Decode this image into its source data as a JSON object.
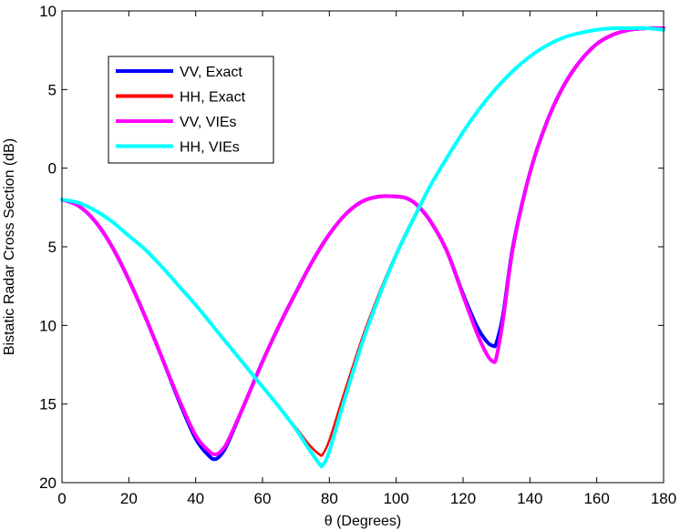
{
  "chart_data": {
    "type": "line",
    "title": "",
    "xlabel": "θ (Degrees)",
    "ylabel": "Bistatic Radar Cross Section (dB)",
    "xlim": [
      0,
      180
    ],
    "ylim": [
      -20,
      10
    ],
    "x_ticks": [
      0,
      20,
      40,
      60,
      80,
      100,
      120,
      140,
      160,
      180
    ],
    "y_ticks": [
      -20,
      -15,
      -10,
      -5,
      0,
      5,
      10
    ],
    "x_tick_labels": [
      "0",
      "20",
      "40",
      "60",
      "80",
      "100",
      "120",
      "140",
      "160",
      "180"
    ],
    "y_tick_labels": [
      "20",
      "15",
      "10",
      "5",
      "0",
      "5",
      "10"
    ],
    "grid": false,
    "legend_position": "top-left",
    "series": [
      {
        "name": "VV, Exact",
        "color": "#0000ff",
        "x": [
          0,
          5,
          10,
          15,
          20,
          25,
          30,
          35,
          40,
          44,
          46,
          48,
          50,
          55,
          60,
          65,
          70,
          75,
          80,
          85,
          90,
          95,
          100,
          103,
          106,
          110,
          115,
          120,
          124,
          127,
          129,
          130,
          132,
          135,
          140,
          145,
          150,
          155,
          160,
          165,
          170,
          175,
          180
        ],
        "y": [
          -2.0,
          -2.4,
          -3.4,
          -5.0,
          -7.1,
          -9.5,
          -12.1,
          -14.8,
          -17.2,
          -18.3,
          -18.5,
          -18.1,
          -17.3,
          -14.8,
          -12.3,
          -10.0,
          -7.9,
          -5.9,
          -4.2,
          -2.9,
          -2.1,
          -1.8,
          -1.8,
          -1.9,
          -2.3,
          -3.3,
          -5.2,
          -8.0,
          -10.0,
          -11.0,
          -11.3,
          -11.1,
          -9.3,
          -4.9,
          -0.3,
          2.9,
          5.2,
          6.8,
          7.9,
          8.5,
          8.8,
          8.9,
          8.9
        ]
      },
      {
        "name": "HH, Exact",
        "color": "#ff0000",
        "x": [
          0,
          5,
          10,
          15,
          20,
          25,
          30,
          35,
          40,
          45,
          50,
          55,
          60,
          65,
          70,
          74,
          77,
          78,
          80,
          84,
          90,
          95,
          100,
          105,
          110,
          115,
          120,
          125,
          130,
          135,
          140,
          145,
          150,
          155,
          160,
          165,
          170,
          175,
          180
        ],
        "y": [
          -2.0,
          -2.2,
          -2.7,
          -3.4,
          -4.3,
          -5.2,
          -6.3,
          -7.5,
          -8.7,
          -10.0,
          -11.3,
          -12.6,
          -13.9,
          -15.2,
          -16.5,
          -17.6,
          -18.2,
          -18.2,
          -17.3,
          -14.6,
          -10.7,
          -7.9,
          -5.4,
          -3.2,
          -1.2,
          0.6,
          2.3,
          3.8,
          5.1,
          6.2,
          7.1,
          7.8,
          8.3,
          8.6,
          8.8,
          8.9,
          8.9,
          8.9,
          8.8
        ]
      },
      {
        "name": "VV, VIEs",
        "color": "#ff00ff",
        "x": [
          0,
          5,
          10,
          15,
          20,
          25,
          30,
          35,
          40,
          44,
          46,
          48,
          50,
          55,
          60,
          65,
          70,
          75,
          80,
          85,
          90,
          95,
          100,
          103,
          106,
          110,
          115,
          120,
          124,
          127,
          129,
          130,
          132,
          135,
          140,
          145,
          150,
          155,
          160,
          165,
          170,
          175,
          180
        ],
        "y": [
          -2.0,
          -2.4,
          -3.4,
          -5.0,
          -7.1,
          -9.5,
          -12.1,
          -14.7,
          -17.0,
          -18.0,
          -18.2,
          -17.9,
          -17.2,
          -14.8,
          -12.3,
          -10.0,
          -7.9,
          -5.9,
          -4.2,
          -2.9,
          -2.1,
          -1.8,
          -1.8,
          -1.9,
          -2.3,
          -3.3,
          -5.2,
          -8.1,
          -10.4,
          -11.8,
          -12.3,
          -12.0,
          -9.6,
          -5.0,
          -0.3,
          2.9,
          5.2,
          6.8,
          7.9,
          8.5,
          8.8,
          8.9,
          8.9
        ]
      },
      {
        "name": "HH, VIEs",
        "color": "#00ffff",
        "x": [
          0,
          5,
          10,
          15,
          20,
          25,
          30,
          35,
          40,
          45,
          50,
          55,
          60,
          65,
          70,
          74,
          77,
          78,
          80,
          84,
          90,
          95,
          100,
          105,
          110,
          115,
          120,
          125,
          130,
          135,
          140,
          145,
          150,
          155,
          160,
          165,
          170,
          175,
          180
        ],
        "y": [
          -2.0,
          -2.2,
          -2.7,
          -3.4,
          -4.3,
          -5.2,
          -6.3,
          -7.5,
          -8.7,
          -10.0,
          -11.3,
          -12.6,
          -13.9,
          -15.2,
          -16.6,
          -17.9,
          -18.8,
          -18.9,
          -18.0,
          -15.1,
          -11.0,
          -8.1,
          -5.5,
          -3.3,
          -1.2,
          0.6,
          2.3,
          3.8,
          5.1,
          6.2,
          7.1,
          7.8,
          8.3,
          8.6,
          8.8,
          8.9,
          8.9,
          8.9,
          8.8
        ]
      }
    ]
  }
}
